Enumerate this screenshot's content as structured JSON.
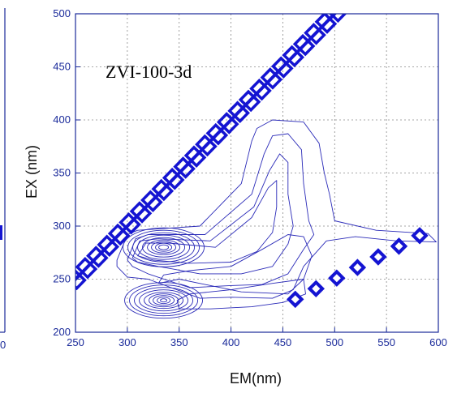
{
  "chart_data": {
    "type": "contour",
    "panel_label": "ZVI-100-3d",
    "xlabel": "EM(nm)",
    "ylabel": "EX (nm)",
    "xlim": [
      250,
      600
    ],
    "ylim": [
      200,
      500
    ],
    "x_ticks": [
      "250",
      "300",
      "350",
      "400",
      "450",
      "500",
      "550",
      "600"
    ],
    "y_ticks": [
      "200",
      "250",
      "300",
      "350",
      "400",
      "450",
      "500"
    ],
    "grid": "dotted",
    "colors": {
      "contour": "#2a2ab8",
      "axis": "#1a2a9a",
      "scatter_band": "#1414d2"
    },
    "peaks": [
      {
        "em": 335,
        "ex": 280
      },
      {
        "em": 335,
        "ex": 230
      }
    ],
    "rayleigh_first_order": {
      "relation": "EM = EX",
      "em_range": [
        250,
        500
      ]
    },
    "rayleigh_second_order": {
      "relation": "EM = 2 EX",
      "em_range": [
        460,
        600
      ]
    },
    "left_panel_fragments": {
      "tick_label_partial": "0"
    }
  }
}
